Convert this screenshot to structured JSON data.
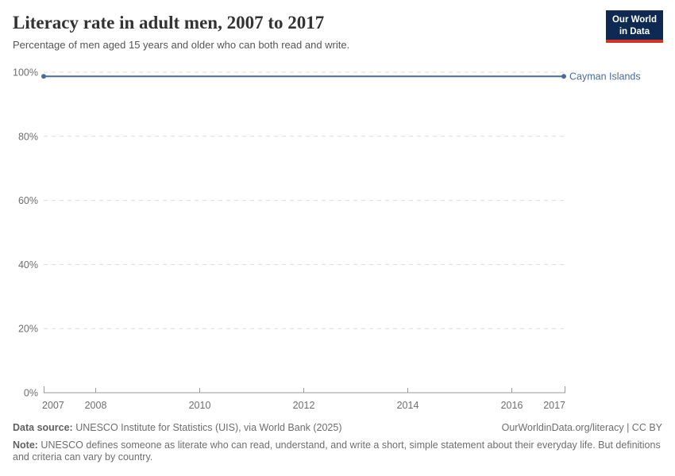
{
  "header": {
    "title": "Literacy rate in adult men, 2007 to 2017",
    "subtitle": "Percentage of men aged 15 years and older who can both read and write."
  },
  "logo": {
    "line1": "Our World",
    "line2": "in Data",
    "bg_color": "#0e2a52",
    "accent_color": "#d13328"
  },
  "chart_data": {
    "type": "line",
    "title": "Literacy rate in adult men, 2007 to 2017",
    "x": [
      2007,
      2008,
      2009,
      2010,
      2011,
      2012,
      2013,
      2014,
      2015,
      2016,
      2017
    ],
    "series": [
      {
        "name": "Cayman Islands",
        "values": [
          98.7,
          98.7,
          98.7,
          98.7,
          98.7,
          98.7,
          98.7,
          98.7,
          98.7,
          98.7,
          98.7
        ],
        "color": "#4c6a9c"
      }
    ],
    "xlabel": "",
    "ylabel": "",
    "ylim": [
      0,
      100
    ],
    "yticks": [
      "100%",
      "80%",
      "60%",
      "40%",
      "20%",
      "0%"
    ],
    "xticks": [
      "2007",
      "2008",
      "2010",
      "2012",
      "2014",
      "2016",
      "2017"
    ],
    "grid": "horizontal dashed",
    "legend": "inline label right of line end"
  },
  "footer": {
    "datasource_label": "Data source:",
    "datasource_text": " UNESCO Institute for Statistics (UIS), via World Bank (2025)",
    "link_text": "OurWorldinData.org/literacy | CC BY",
    "note_label": "Note:",
    "note_text": " UNESCO defines someone as literate who can read, understand, and write a short, simple statement about their everyday life. But definitions and criteria can vary by country."
  }
}
